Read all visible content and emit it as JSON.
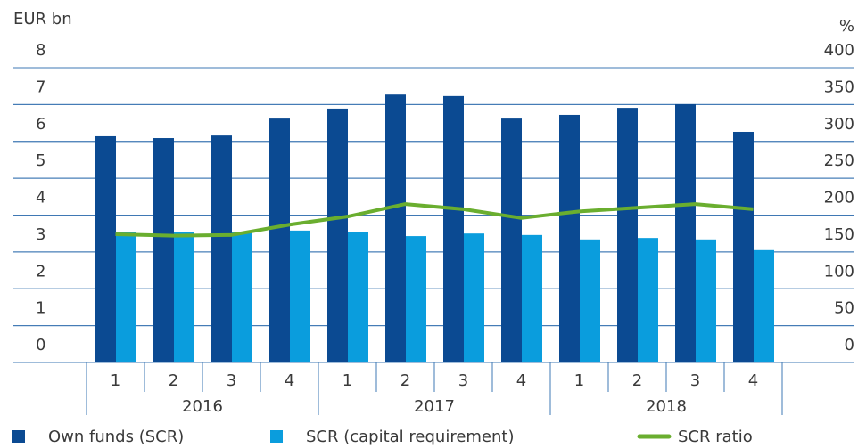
{
  "chart_data": {
    "type": "bar-line",
    "y_label": "EUR bn",
    "y2_label": "%",
    "categories": [
      "1",
      "2",
      "3",
      "4",
      "1",
      "2",
      "3",
      "4",
      "1",
      "2",
      "3",
      "4"
    ],
    "groups": [
      "2016",
      "2017",
      "2018"
    ],
    "ylim": [
      0,
      8
    ],
    "yticks": [
      0,
      1,
      2,
      3,
      4,
      5,
      6,
      7,
      8
    ],
    "y2lim": [
      0,
      400
    ],
    "y2ticks": [
      0,
      50,
      100,
      150,
      200,
      250,
      300,
      350,
      400
    ],
    "grid": true,
    "series": [
      {
        "name": "Own funds (SCR)",
        "type": "bar",
        "color": "#0b4a92",
        "values": [
          6.14,
          6.09,
          6.16,
          6.62,
          6.89,
          7.27,
          7.23,
          6.62,
          6.72,
          6.91,
          7.01,
          6.26
        ]
      },
      {
        "name": "SCR (capital requirement)",
        "type": "bar",
        "color": "#0a9ddd",
        "values": [
          3.55,
          3.53,
          3.53,
          3.58,
          3.55,
          3.43,
          3.5,
          3.46,
          3.34,
          3.38,
          3.34,
          3.05
        ]
      },
      {
        "name": "SCR ratio",
        "type": "line",
        "axis": "y2",
        "color": "#6aae2f",
        "values": [
          174,
          172,
          173,
          187,
          198,
          215,
          208,
          196,
          205,
          210,
          215,
          208
        ]
      }
    ]
  }
}
